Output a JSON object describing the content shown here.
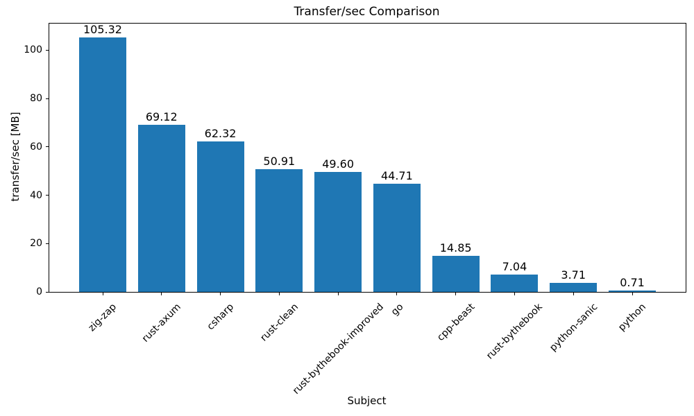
{
  "chart_data": {
    "type": "bar",
    "title": "Transfer/sec Comparison",
    "xlabel": "Subject",
    "ylabel": "transfer/sec [MB]",
    "categories": [
      "zig-zap",
      "rust-axum",
      "csharp",
      "rust-clean",
      "rust-bythebook-improved",
      "go",
      "cpp-beast",
      "rust-bythebook",
      "python-sanic",
      "python"
    ],
    "values": [
      105.32,
      69.12,
      62.32,
      50.91,
      49.6,
      44.71,
      14.85,
      7.04,
      3.71,
      0.71
    ],
    "value_labels": [
      "105.32",
      "69.12",
      "62.32",
      "50.91",
      "49.60",
      "44.71",
      "14.85",
      "7.04",
      "3.71",
      "0.71"
    ],
    "bar_color": "#1f77b4",
    "axis_color": "#000000",
    "text_color": "#000000",
    "background_color": "#ffffff",
    "ylim": [
      0,
      111
    ],
    "yticks": [
      0,
      20,
      40,
      60,
      80,
      100
    ],
    "x_tick_rotation_deg": 45,
    "grid": false,
    "legend": "none"
  }
}
